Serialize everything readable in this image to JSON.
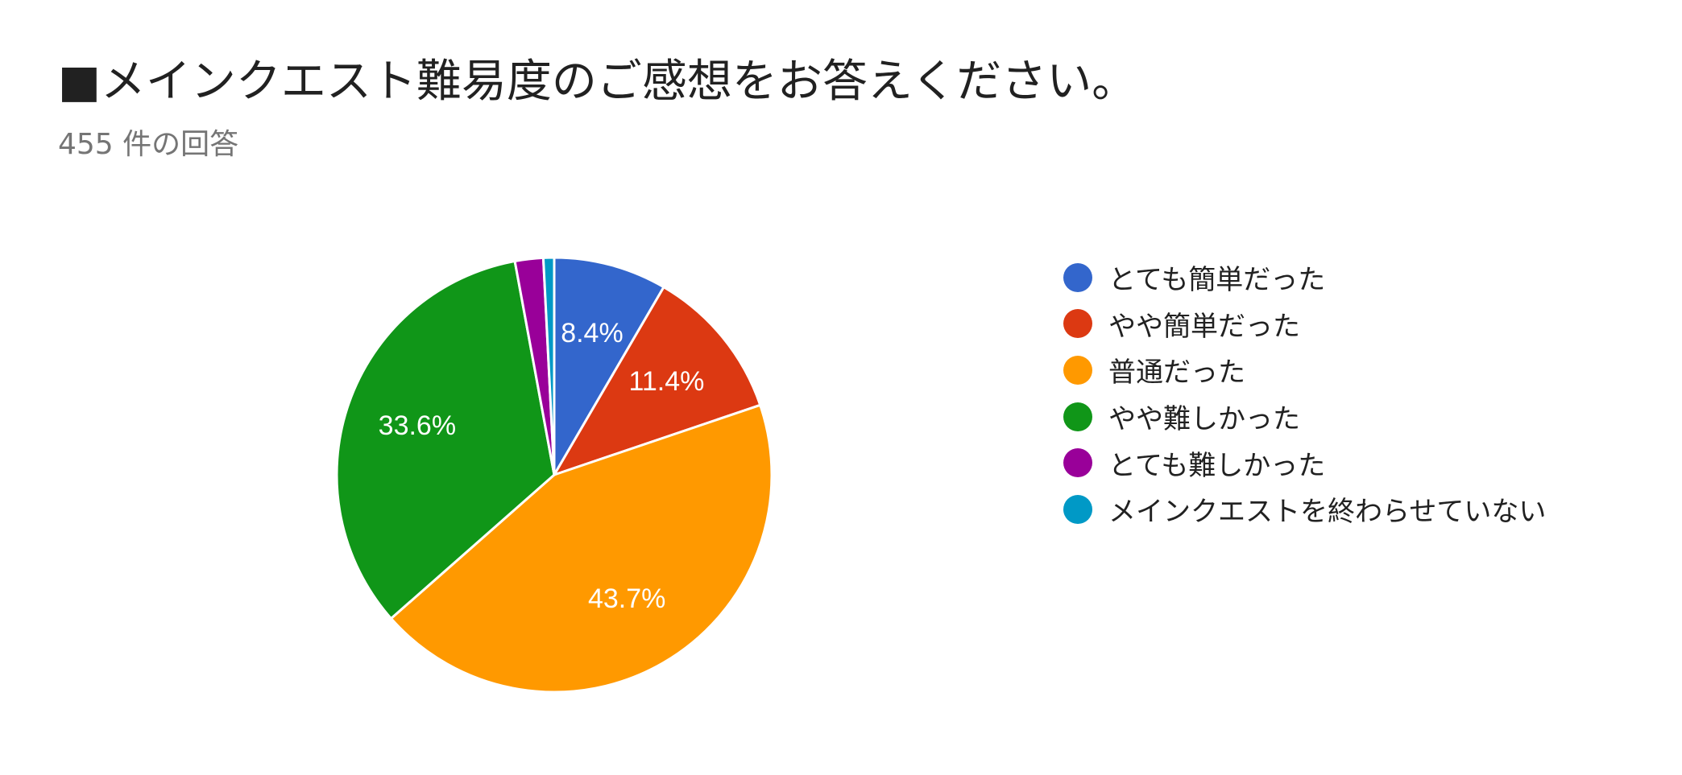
{
  "header": {
    "title": "■メインクエスト難易度のご感想をお答えください。",
    "subtitle": "455 件の回答"
  },
  "chart_data": {
    "type": "pie",
    "start_angle_deg": 90,
    "direction": "clockwise",
    "slices": [
      {
        "name": "とても簡単だった",
        "value": 8.4,
        "label": "8.4%",
        "color": "#3366cc"
      },
      {
        "name": "やや簡単だった",
        "value": 11.4,
        "label": "11.4%",
        "color": "#dc3912"
      },
      {
        "name": "普通だった",
        "value": 43.7,
        "label": "43.7%",
        "color": "#ff9900"
      },
      {
        "name": "やや難しかった",
        "value": 33.6,
        "label": "33.6%",
        "color": "#109618"
      },
      {
        "name": "とても難しかった",
        "value": 2.1,
        "label": "",
        "color": "#990099"
      },
      {
        "name": "メインクエストを終わらせていない",
        "value": 0.8,
        "label": "",
        "color": "#0099c6"
      }
    ],
    "legend": "right"
  }
}
